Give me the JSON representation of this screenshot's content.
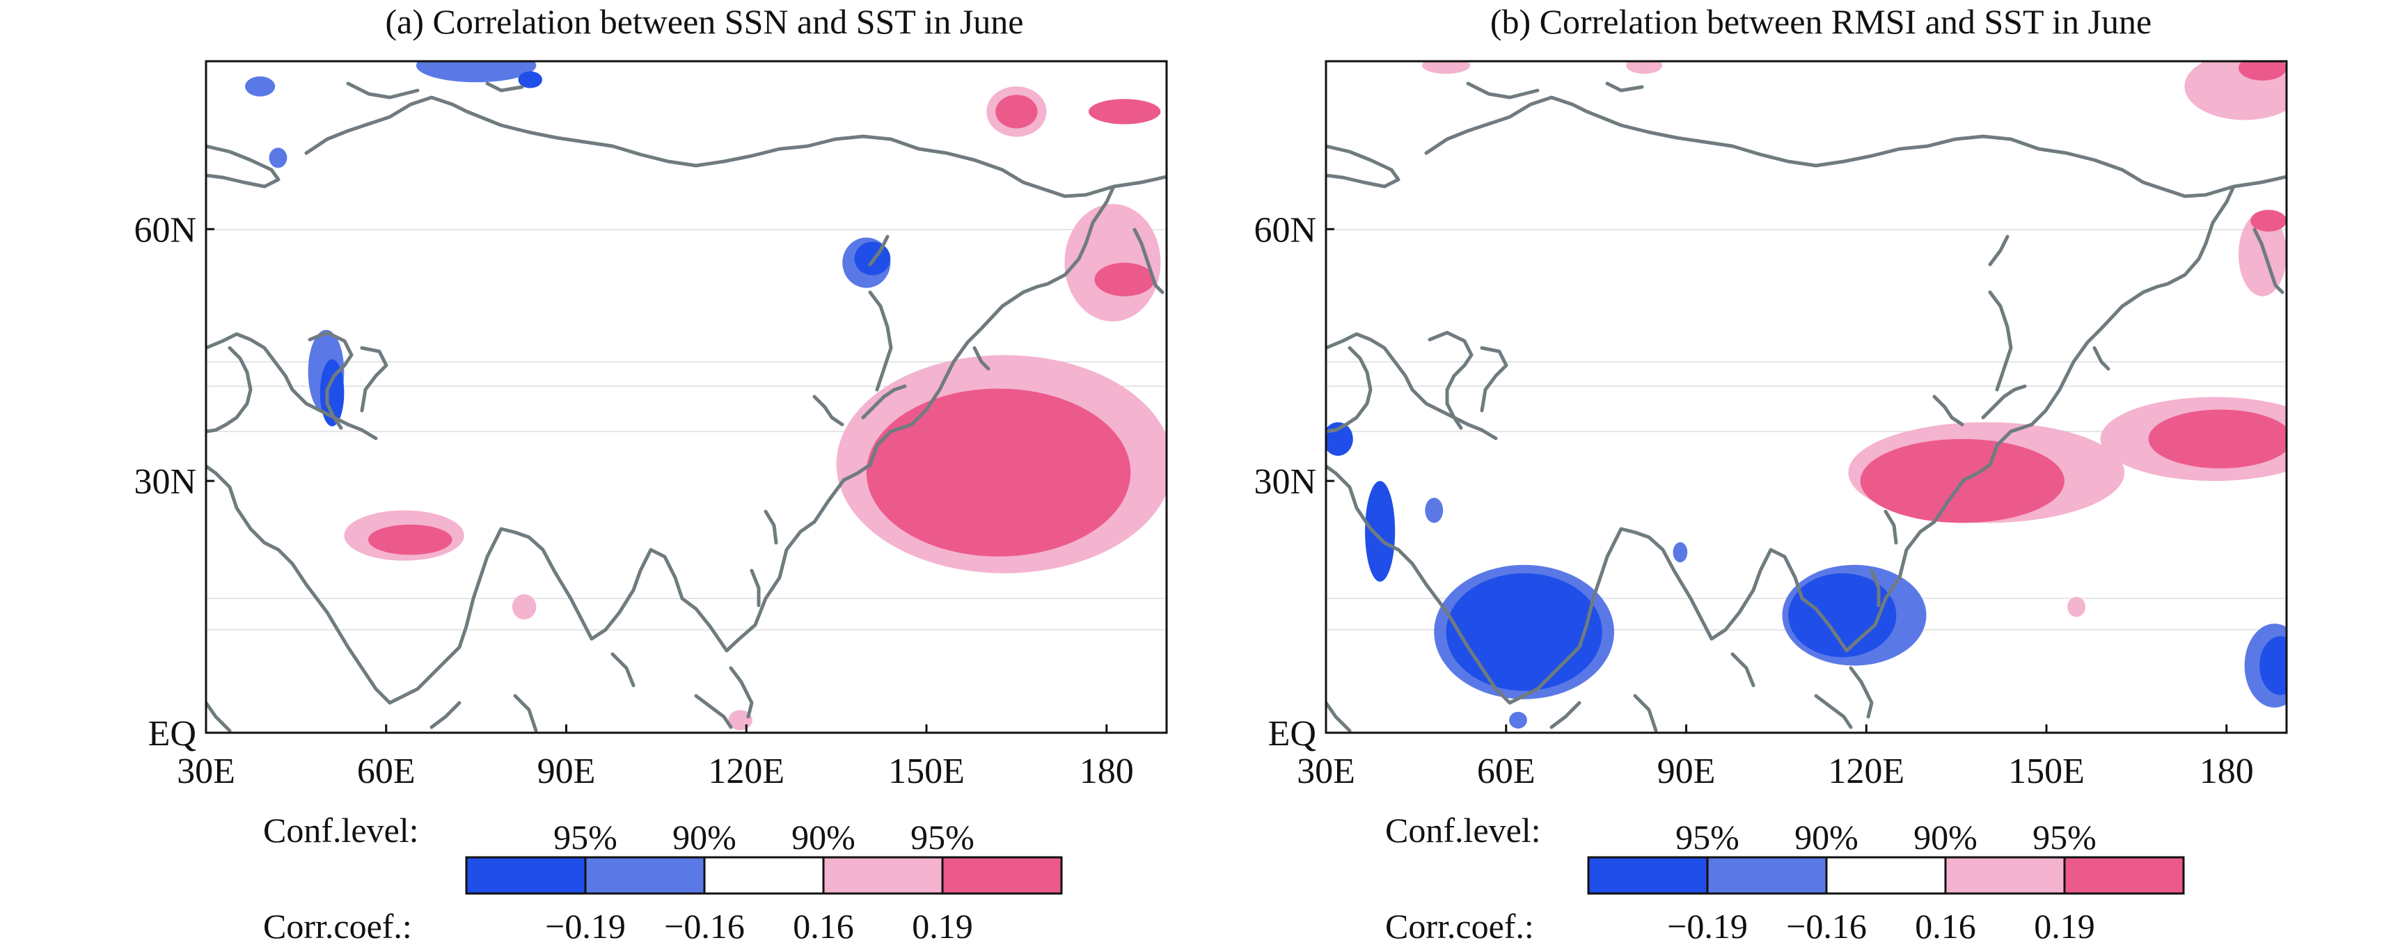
{
  "colors": {
    "neg95": "#1f4fe8",
    "neg90": "#5b79e6",
    "insignificant": "#ffffff",
    "pos90": "#f4b3cf",
    "pos95": "#ec5a8c"
  },
  "legend": {
    "conf_label": "Conf.level:",
    "corr_label": "Corr.coef.:",
    "levels": [
      "95%",
      "90%",
      "90%",
      "95%"
    ],
    "thresholds": [
      "−0.19",
      "−0.16",
      "0.16",
      "0.19"
    ]
  },
  "chart_data": [
    {
      "type": "heatmap",
      "title": "(a) Correlation between SSN and SST in June",
      "x_ticks": [
        "30E",
        "60E",
        "90E",
        "120E",
        "150E",
        "180"
      ],
      "y_ticks": [
        "60N",
        "30N",
        "EQ"
      ],
      "xlim": [
        30,
        190
      ],
      "ylim": [
        0,
        80
      ],
      "regions": [
        {
          "level": "pos95",
          "lon": 162,
          "lat": 31,
          "dlon": 22,
          "dlat": 10
        },
        {
          "level": "pos90",
          "lon": 163,
          "lat": 32,
          "dlon": 28,
          "dlat": 13
        },
        {
          "level": "pos95",
          "lon": 64,
          "lat": 23,
          "dlon": 7,
          "dlat": 1.8
        },
        {
          "level": "pos90",
          "lon": 63,
          "lat": 23.5,
          "dlon": 10,
          "dlat": 3
        },
        {
          "level": "pos90",
          "lon": 181,
          "lat": 56,
          "dlon": 8,
          "dlat": 7
        },
        {
          "level": "pos95",
          "lon": 183,
          "lat": 54,
          "dlon": 5,
          "dlat": 2
        },
        {
          "level": "pos95",
          "lon": 183,
          "lat": 74,
          "dlon": 6,
          "dlat": 1.5
        },
        {
          "level": "pos95",
          "lon": 165,
          "lat": 74,
          "dlon": 3.5,
          "dlat": 2
        },
        {
          "level": "pos90",
          "lon": 165,
          "lat": 74,
          "dlon": 5,
          "dlat": 3
        },
        {
          "level": "pos90",
          "lon": 83,
          "lat": 15,
          "dlon": 2,
          "dlat": 1.5
        },
        {
          "level": "pos90",
          "lon": 119,
          "lat": 1.5,
          "dlon": 2,
          "dlat": 1.2
        },
        {
          "level": "neg95",
          "lon": 51,
          "lat": 40.5,
          "dlon": 2,
          "dlat": 4
        },
        {
          "level": "neg90",
          "lon": 50,
          "lat": 43,
          "dlon": 3,
          "dlat": 5
        },
        {
          "level": "neg95",
          "lon": 141,
          "lat": 56.5,
          "dlon": 3,
          "dlat": 2
        },
        {
          "level": "neg90",
          "lon": 140,
          "lat": 56,
          "dlon": 4,
          "dlat": 3
        },
        {
          "level": "neg90",
          "lon": 75,
          "lat": 79.5,
          "dlon": 10,
          "dlat": 2
        },
        {
          "level": "neg95",
          "lon": 84,
          "lat": 77.8,
          "dlon": 2,
          "dlat": 1
        },
        {
          "level": "neg90",
          "lon": 39,
          "lat": 77,
          "dlon": 2.5,
          "dlat": 1.2
        },
        {
          "level": "neg90",
          "lon": 42,
          "lat": 68.5,
          "dlon": 1.5,
          "dlat": 1.2
        }
      ]
    },
    {
      "type": "heatmap",
      "title": "(b) Correlation between RMSI and SST in June",
      "x_ticks": [
        "30E",
        "60E",
        "90E",
        "120E",
        "150E",
        "180"
      ],
      "y_ticks": [
        "60N",
        "30N",
        "EQ"
      ],
      "xlim": [
        30,
        190
      ],
      "ylim": [
        0,
        80
      ],
      "regions": [
        {
          "level": "pos90",
          "lon": 140,
          "lat": 31,
          "dlon": 23,
          "dlat": 6
        },
        {
          "level": "pos95",
          "lon": 136,
          "lat": 30,
          "dlon": 17,
          "dlat": 5
        },
        {
          "level": "pos90",
          "lon": 178,
          "lat": 35,
          "dlon": 19,
          "dlat": 5
        },
        {
          "level": "pos95",
          "lon": 179,
          "lat": 35,
          "dlon": 12,
          "dlat": 3.5
        },
        {
          "level": "pos90",
          "lon": 183,
          "lat": 77,
          "dlon": 10,
          "dlat": 4
        },
        {
          "level": "pos95",
          "lon": 186,
          "lat": 79.2,
          "dlon": 4,
          "dlat": 1.5
        },
        {
          "level": "pos90",
          "lon": 186,
          "lat": 57,
          "dlon": 4,
          "dlat": 5
        },
        {
          "level": "pos95",
          "lon": 187,
          "lat": 61,
          "dlon": 3,
          "dlat": 1.3
        },
        {
          "level": "pos90",
          "lon": 50,
          "lat": 79.5,
          "dlon": 4,
          "dlat": 1
        },
        {
          "level": "pos90",
          "lon": 83,
          "lat": 79.5,
          "dlon": 3,
          "dlat": 1
        },
        {
          "level": "pos90",
          "lon": 155,
          "lat": 15,
          "dlon": 1.5,
          "dlat": 1.2
        },
        {
          "level": "neg90",
          "lon": 63,
          "lat": 12,
          "dlon": 15,
          "dlat": 8
        },
        {
          "level": "neg95",
          "lon": 63,
          "lat": 12,
          "dlon": 13,
          "dlat": 7
        },
        {
          "level": "neg90",
          "lon": 118,
          "lat": 14,
          "dlon": 12,
          "dlat": 6
        },
        {
          "level": "neg95",
          "lon": 116,
          "lat": 14,
          "dlon": 9,
          "dlat": 5
        },
        {
          "level": "neg95",
          "lon": 39,
          "lat": 24,
          "dlon": 2.5,
          "dlat": 6
        },
        {
          "level": "neg95",
          "lon": 32,
          "lat": 35,
          "dlon": 2.5,
          "dlat": 2
        },
        {
          "level": "neg90",
          "lon": 188,
          "lat": 8,
          "dlon": 5,
          "dlat": 5
        },
        {
          "level": "neg95",
          "lon": 189,
          "lat": 8,
          "dlon": 3.5,
          "dlat": 3.5
        },
        {
          "level": "neg90",
          "lon": 62,
          "lat": 1.5,
          "dlon": 1.5,
          "dlat": 1
        },
        {
          "level": "neg90",
          "lon": 48,
          "lat": 26.5,
          "dlon": 1.5,
          "dlat": 1.5
        },
        {
          "level": "neg90",
          "lon": 89,
          "lat": 21.5,
          "dlon": 1.2,
          "dlat": 1.2
        }
      ]
    }
  ]
}
